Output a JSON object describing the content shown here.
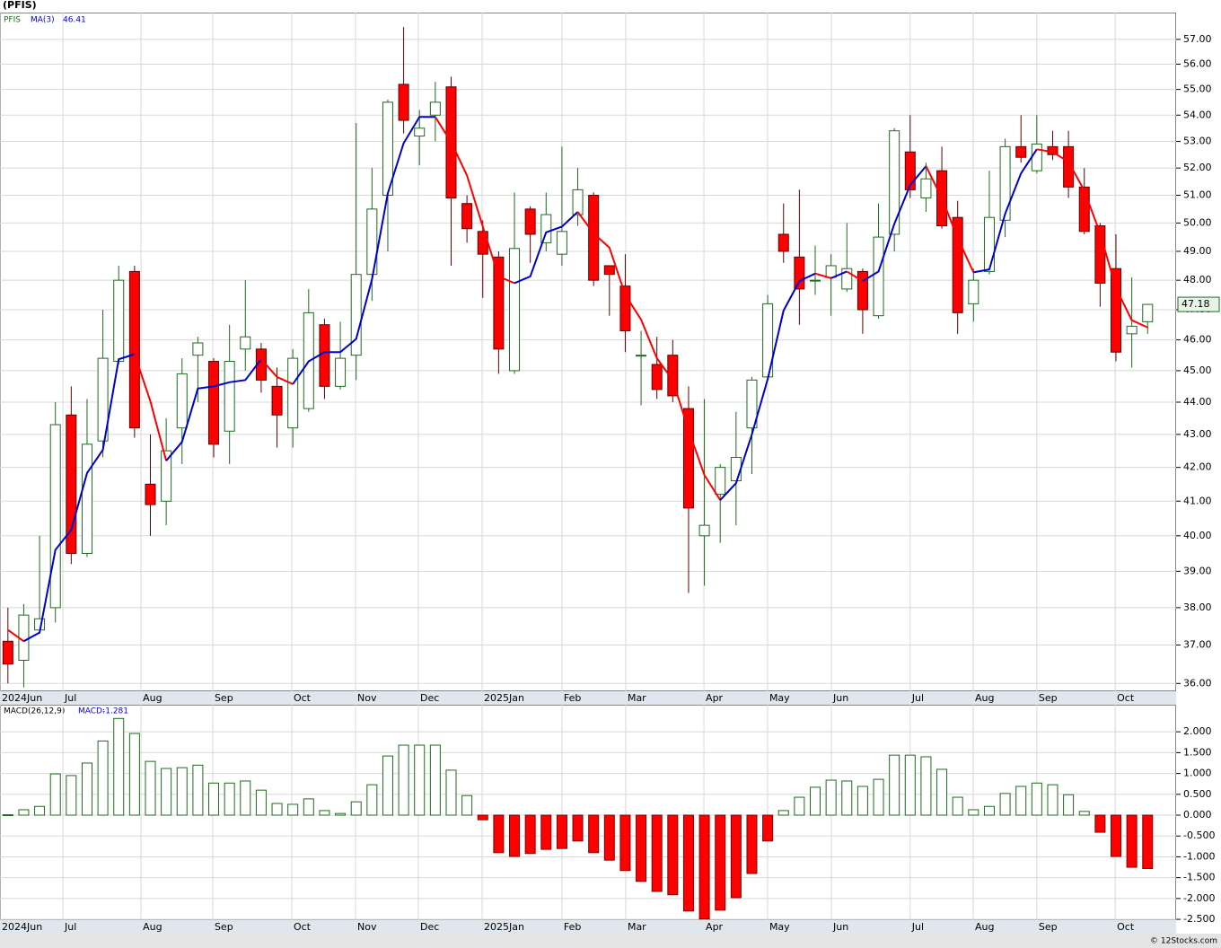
{
  "chart_data": [
    {
      "type": "candlestick",
      "title": "(PFIS)",
      "symbol": "PFIS",
      "log_scale": true,
      "grid": true,
      "up_color": "#1e6b1e",
      "down_color": "#ff0000",
      "xlim": [
        -0.5,
        73.8
      ],
      "xticks": [
        {
          "value": -0.5,
          "label": "2024Jun"
        },
        {
          "value": 3.47,
          "label": "Jul"
        },
        {
          "value": 8.41,
          "label": "Aug"
        },
        {
          "value": 12.94,
          "label": "Sep"
        },
        {
          "value": 17.93,
          "label": "Oct"
        },
        {
          "value": 21.96,
          "label": "Nov"
        },
        {
          "value": 25.93,
          "label": "Dec"
        },
        {
          "value": 29.96,
          "label": "2025Jan"
        },
        {
          "value": 35.0,
          "label": "Feb"
        },
        {
          "value": 39.03,
          "label": "Mar"
        },
        {
          "value": 43.97,
          "label": "Apr"
        },
        {
          "value": 47.99,
          "label": "May"
        },
        {
          "value": 52.02,
          "label": "Jun"
        },
        {
          "value": 57.0,
          "label": "Jul"
        },
        {
          "value": 60.98,
          "label": "Aug"
        },
        {
          "value": 65.0,
          "label": "Sep"
        },
        {
          "value": 69.95,
          "label": "Oct"
        }
      ],
      "ylim": [
        35.8,
        58.1
      ],
      "yticks": [
        {
          "value": 36,
          "label": "36.00"
        },
        {
          "value": 37,
          "label": "37.00"
        },
        {
          "value": 38,
          "label": "38.00"
        },
        {
          "value": 39,
          "label": "39.00"
        },
        {
          "value": 40,
          "label": "40.00"
        },
        {
          "value": 41,
          "label": "41.00"
        },
        {
          "value": 42,
          "label": "42.00"
        },
        {
          "value": 43,
          "label": "43.00"
        },
        {
          "value": 44,
          "label": "44.00"
        },
        {
          "value": 45,
          "label": "45.00"
        },
        {
          "value": 46,
          "label": "46.00"
        },
        {
          "value": 47,
          "label": "47.00"
        },
        {
          "value": 48,
          "label": "48.00"
        },
        {
          "value": 49,
          "label": "49.00"
        },
        {
          "value": 50,
          "label": "50.00"
        },
        {
          "value": 51,
          "label": "51.00"
        },
        {
          "value": 52,
          "label": "52.00"
        },
        {
          "value": 53,
          "label": "53.00"
        },
        {
          "value": 54,
          "label": "54.00"
        },
        {
          "value": 55,
          "label": "55.00"
        },
        {
          "value": 56,
          "label": "56.00"
        },
        {
          "value": 57,
          "label": "57.00"
        }
      ],
      "open": [
        37.1,
        36.6,
        37.4,
        38.0,
        43.6,
        39.5,
        42.8,
        45.3,
        48.3,
        41.5,
        41.0,
        43.2,
        45.5,
        45.3,
        43.1,
        45.7,
        45.7,
        44.5,
        43.2,
        43.8,
        46.5,
        44.5,
        45.5,
        48.2,
        51.0,
        55.2,
        53.2,
        54.0,
        55.1,
        50.7,
        49.7,
        48.8,
        45.0,
        50.5,
        49.3,
        48.9,
        50.3,
        51.0,
        48.5,
        47.8,
        45.5,
        45.2,
        45.5,
        43.8,
        40.0,
        41.2,
        41.6,
        43.2,
        44.8,
        49.6,
        48.8,
        48.0,
        48.1,
        47.7,
        48.3,
        46.8,
        49.6,
        52.6,
        50.9,
        51.9,
        50.2,
        47.2,
        48.3,
        50.1,
        52.8,
        51.9,
        52.8,
        52.8,
        51.3,
        49.9,
        48.4,
        46.2,
        46.6
      ],
      "high": [
        38.0,
        38.1,
        40.0,
        44.0,
        44.5,
        44.1,
        47.0,
        48.5,
        48.5,
        43.0,
        43.5,
        45.4,
        46.1,
        45.4,
        46.5,
        48.0,
        45.9,
        45.1,
        45.7,
        47.7,
        46.7,
        46.6,
        53.7,
        52.0,
        54.6,
        57.5,
        54.2,
        55.3,
        55.5,
        51.0,
        50.1,
        49.0,
        51.1,
        50.6,
        51.1,
        52.8,
        52.0,
        51.1,
        48.5,
        48.9,
        46.3,
        46.1,
        46.0,
        44.5,
        44.1,
        42.1,
        43.7,
        44.8,
        47.5,
        50.7,
        51.2,
        49.2,
        48.9,
        50.0,
        48.4,
        50.7,
        53.5,
        54.0,
        52.2,
        52.8,
        50.8,
        48.4,
        51.9,
        53.1,
        54.0,
        54.0,
        53.4,
        53.4,
        52.0,
        50.0,
        49.6,
        48.1,
        47.2
      ],
      "low": [
        36.0,
        35.9,
        37.3,
        37.6,
        39.2,
        39.4,
        42.3,
        45.2,
        42.9,
        40.0,
        40.3,
        42.1,
        44.0,
        42.3,
        42.1,
        45.0,
        44.3,
        42.6,
        42.6,
        43.7,
        44.1,
        44.4,
        44.7,
        47.3,
        49.0,
        53.3,
        52.1,
        53.0,
        48.5,
        49.3,
        47.4,
        44.9,
        44.9,
        48.6,
        49.0,
        48.5,
        49.9,
        47.8,
        46.8,
        45.6,
        43.9,
        44.1,
        44.0,
        38.4,
        38.6,
        39.8,
        40.3,
        41.8,
        44.7,
        48.6,
        46.5,
        47.5,
        46.8,
        47.6,
        46.2,
        46.7,
        49.0,
        50.9,
        50.4,
        49.8,
        46.2,
        46.6,
        48.2,
        49.5,
        52.2,
        51.8,
        52.3,
        50.9,
        49.6,
        47.1,
        45.3,
        45.1,
        46.2
      ],
      "close": [
        36.5,
        37.8,
        37.7,
        43.3,
        39.5,
        42.7,
        45.4,
        48.0,
        43.2,
        40.9,
        42.5,
        44.9,
        45.9,
        42.7,
        45.3,
        46.1,
        44.7,
        43.6,
        45.4,
        46.9,
        44.5,
        45.4,
        48.2,
        50.5,
        54.5,
        53.8,
        53.5,
        54.5,
        50.9,
        49.8,
        48.9,
        45.7,
        49.1,
        49.6,
        50.3,
        49.7,
        51.2,
        48.0,
        48.2,
        46.3,
        45.5,
        44.4,
        44.2,
        40.8,
        40.3,
        42.0,
        42.3,
        44.7,
        47.2,
        49.0,
        47.7,
        48.0,
        48.5,
        48.4,
        47.0,
        49.5,
        53.4,
        51.2,
        51.6,
        49.9,
        46.9,
        48.0,
        50.2,
        52.8,
        52.4,
        52.9,
        52.5,
        51.3,
        49.7,
        47.9,
        45.6,
        46.45,
        47.18
      ],
      "ma": {
        "name": "MA(3)",
        "up_color": "#0000cc",
        "down_color": "#ff0000",
        "values": [
          37.4,
          37.1,
          37.33,
          39.6,
          40.17,
          41.83,
          42.53,
          45.37,
          45.53,
          44.03,
          42.2,
          42.77,
          44.43,
          44.5,
          44.63,
          44.7,
          45.37,
          44.8,
          44.57,
          45.3,
          45.6,
          45.6,
          46.03,
          48.03,
          51.07,
          52.93,
          53.93,
          53.93,
          52.97,
          51.73,
          49.87,
          48.13,
          47.9,
          48.13,
          49.67,
          49.87,
          50.4,
          49.63,
          49.13,
          47.5,
          46.67,
          45.4,
          44.7,
          43.13,
          41.77,
          41.03,
          41.53,
          43.0,
          44.73,
          46.97,
          47.97,
          48.23,
          48.07,
          48.3,
          47.97,
          48.3,
          49.97,
          51.37,
          52.07,
          50.9,
          49.47,
          48.27,
          48.37,
          50.33,
          51.8,
          52.7,
          52.6,
          52.23,
          51.17,
          49.63,
          47.73,
          46.65,
          46.41
        ]
      },
      "footer": "© 12Stocks.com"
    },
    {
      "type": "bar",
      "title": "MACD(26,12,9)",
      "value_name": "MACD:",
      "grid": true,
      "up_color": "#1e6b1e",
      "down_color": "#ff0000",
      "ylim": [
        -2.52,
        2.65
      ],
      "yticks": [
        {
          "value": 2.0,
          "label": "2.000"
        },
        {
          "value": 1.5,
          "label": "1.500"
        },
        {
          "value": 1.0,
          "label": "1.000"
        },
        {
          "value": 0.5,
          "label": "0.500"
        },
        {
          "value": 0.0,
          "label": "0.000"
        },
        {
          "value": -0.5,
          "label": "-0.500"
        },
        {
          "value": -1.0,
          "label": "-1.000"
        },
        {
          "value": -1.5,
          "label": "-1.500"
        },
        {
          "value": -2.0,
          "label": "-2.000"
        },
        {
          "value": -2.5,
          "label": "-2.500"
        }
      ],
      "values": [
        0.01,
        0.13,
        0.21,
        0.99,
        0.95,
        1.25,
        1.78,
        2.32,
        1.96,
        1.29,
        1.12,
        1.14,
        1.2,
        0.77,
        0.77,
        0.82,
        0.6,
        0.28,
        0.26,
        0.39,
        0.11,
        0.04,
        0.32,
        0.73,
        1.42,
        1.68,
        1.68,
        1.68,
        1.08,
        0.47,
        -0.11,
        -0.9,
        -0.99,
        -0.92,
        -0.82,
        -0.8,
        -0.62,
        -0.9,
        -1.08,
        -1.33,
        -1.59,
        -1.83,
        -1.91,
        -2.3,
        -2.49,
        -2.28,
        -1.98,
        -1.4,
        -0.62,
        0.11,
        0.43,
        0.67,
        0.84,
        0.82,
        0.69,
        0.86,
        1.44,
        1.44,
        1.4,
        1.1,
        0.43,
        0.13,
        0.21,
        0.52,
        0.69,
        0.77,
        0.73,
        0.49,
        0.09,
        -0.41,
        -0.99,
        -1.25,
        -1.281
      ]
    }
  ]
}
